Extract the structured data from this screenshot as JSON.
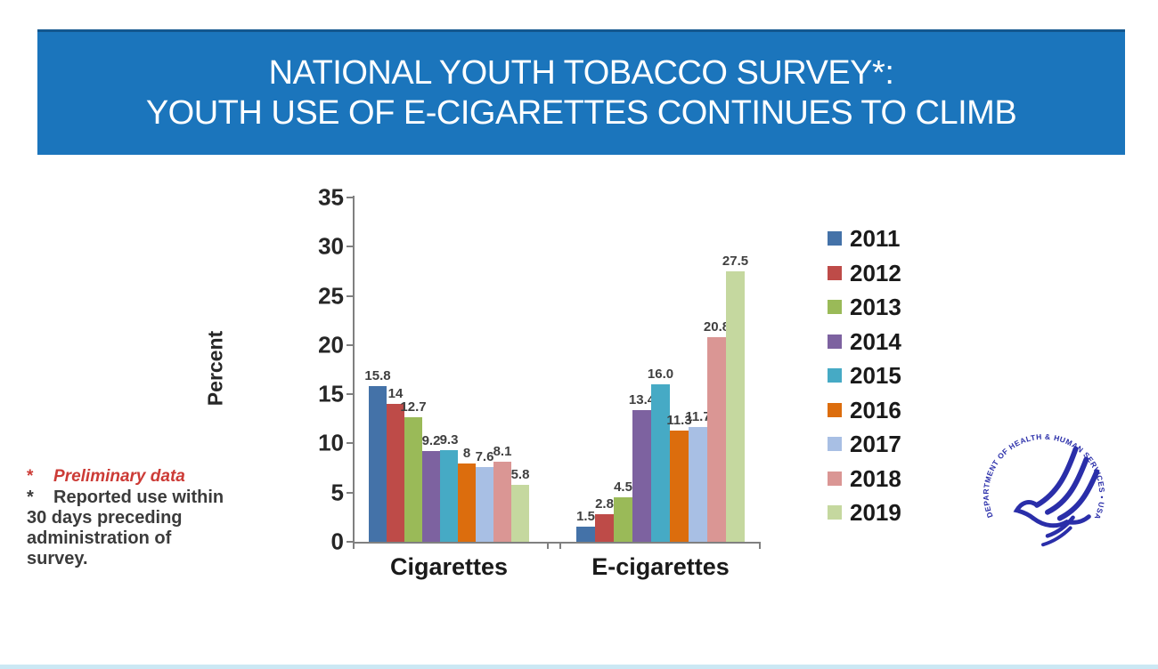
{
  "banner": {
    "title_line1": "NATIONAL YOUTH TOBACCO SURVEY*:",
    "title_line2": "YOUTH USE OF E-CIGARETTES CONTINUES TO CLIMB",
    "bg_color": "#1b75bc"
  },
  "chart_data": {
    "type": "bar",
    "title": "",
    "xlabel": "",
    "ylabel": "Percent",
    "ylim": [
      0,
      35
    ],
    "yticks": [
      0,
      5,
      10,
      15,
      20,
      25,
      30,
      35
    ],
    "grid": false,
    "legend_position": "right",
    "categories": [
      "Cigarettes",
      "E-cigarettes"
    ],
    "series": [
      {
        "name": "2011",
        "color": "#4472A8",
        "values": [
          15.8,
          1.5
        ],
        "labels": [
          "15.8",
          "1.5"
        ]
      },
      {
        "name": "2012",
        "color": "#BE4B48",
        "values": [
          14,
          2.8
        ],
        "labels": [
          "14",
          "2.8"
        ]
      },
      {
        "name": "2013",
        "color": "#9ABA58",
        "values": [
          12.7,
          4.5
        ],
        "labels": [
          "12.7",
          "4.5"
        ]
      },
      {
        "name": "2014",
        "color": "#7D62A0",
        "values": [
          9.2,
          13.4
        ],
        "labels": [
          "9.2",
          "13.4"
        ]
      },
      {
        "name": "2015",
        "color": "#46AAC5",
        "values": [
          9.3,
          16.0
        ],
        "labels": [
          "9.3",
          "16.0"
        ]
      },
      {
        "name": "2016",
        "color": "#DC6D0D",
        "values": [
          8,
          11.3
        ],
        "labels": [
          "8",
          "11.3"
        ]
      },
      {
        "name": "2017",
        "color": "#A8BFE4",
        "values": [
          7.6,
          11.7
        ],
        "labels": [
          "7.6",
          "11.7"
        ]
      },
      {
        "name": "2018",
        "color": "#DA9694",
        "values": [
          8.1,
          20.8
        ],
        "labels": [
          "8.1",
          "20.8"
        ]
      },
      {
        "name": "2019",
        "color": "#C5D89F",
        "values": [
          5.8,
          27.5
        ],
        "labels": [
          "5.8",
          "27.5"
        ]
      }
    ]
  },
  "footnote": {
    "line1_bullet": "*",
    "line1_text": "Preliminary data",
    "line2_bullet": "*",
    "line2_text": "Reported use within",
    "line3_text": "30 days preceding",
    "line4_text": "administration of survey.",
    "red_color": "#cc3b36"
  },
  "logo": {
    "circle_text": "DEPARTMENT OF HEALTH & HUMAN SERVICES • USA",
    "color": "#2a2ea9"
  }
}
